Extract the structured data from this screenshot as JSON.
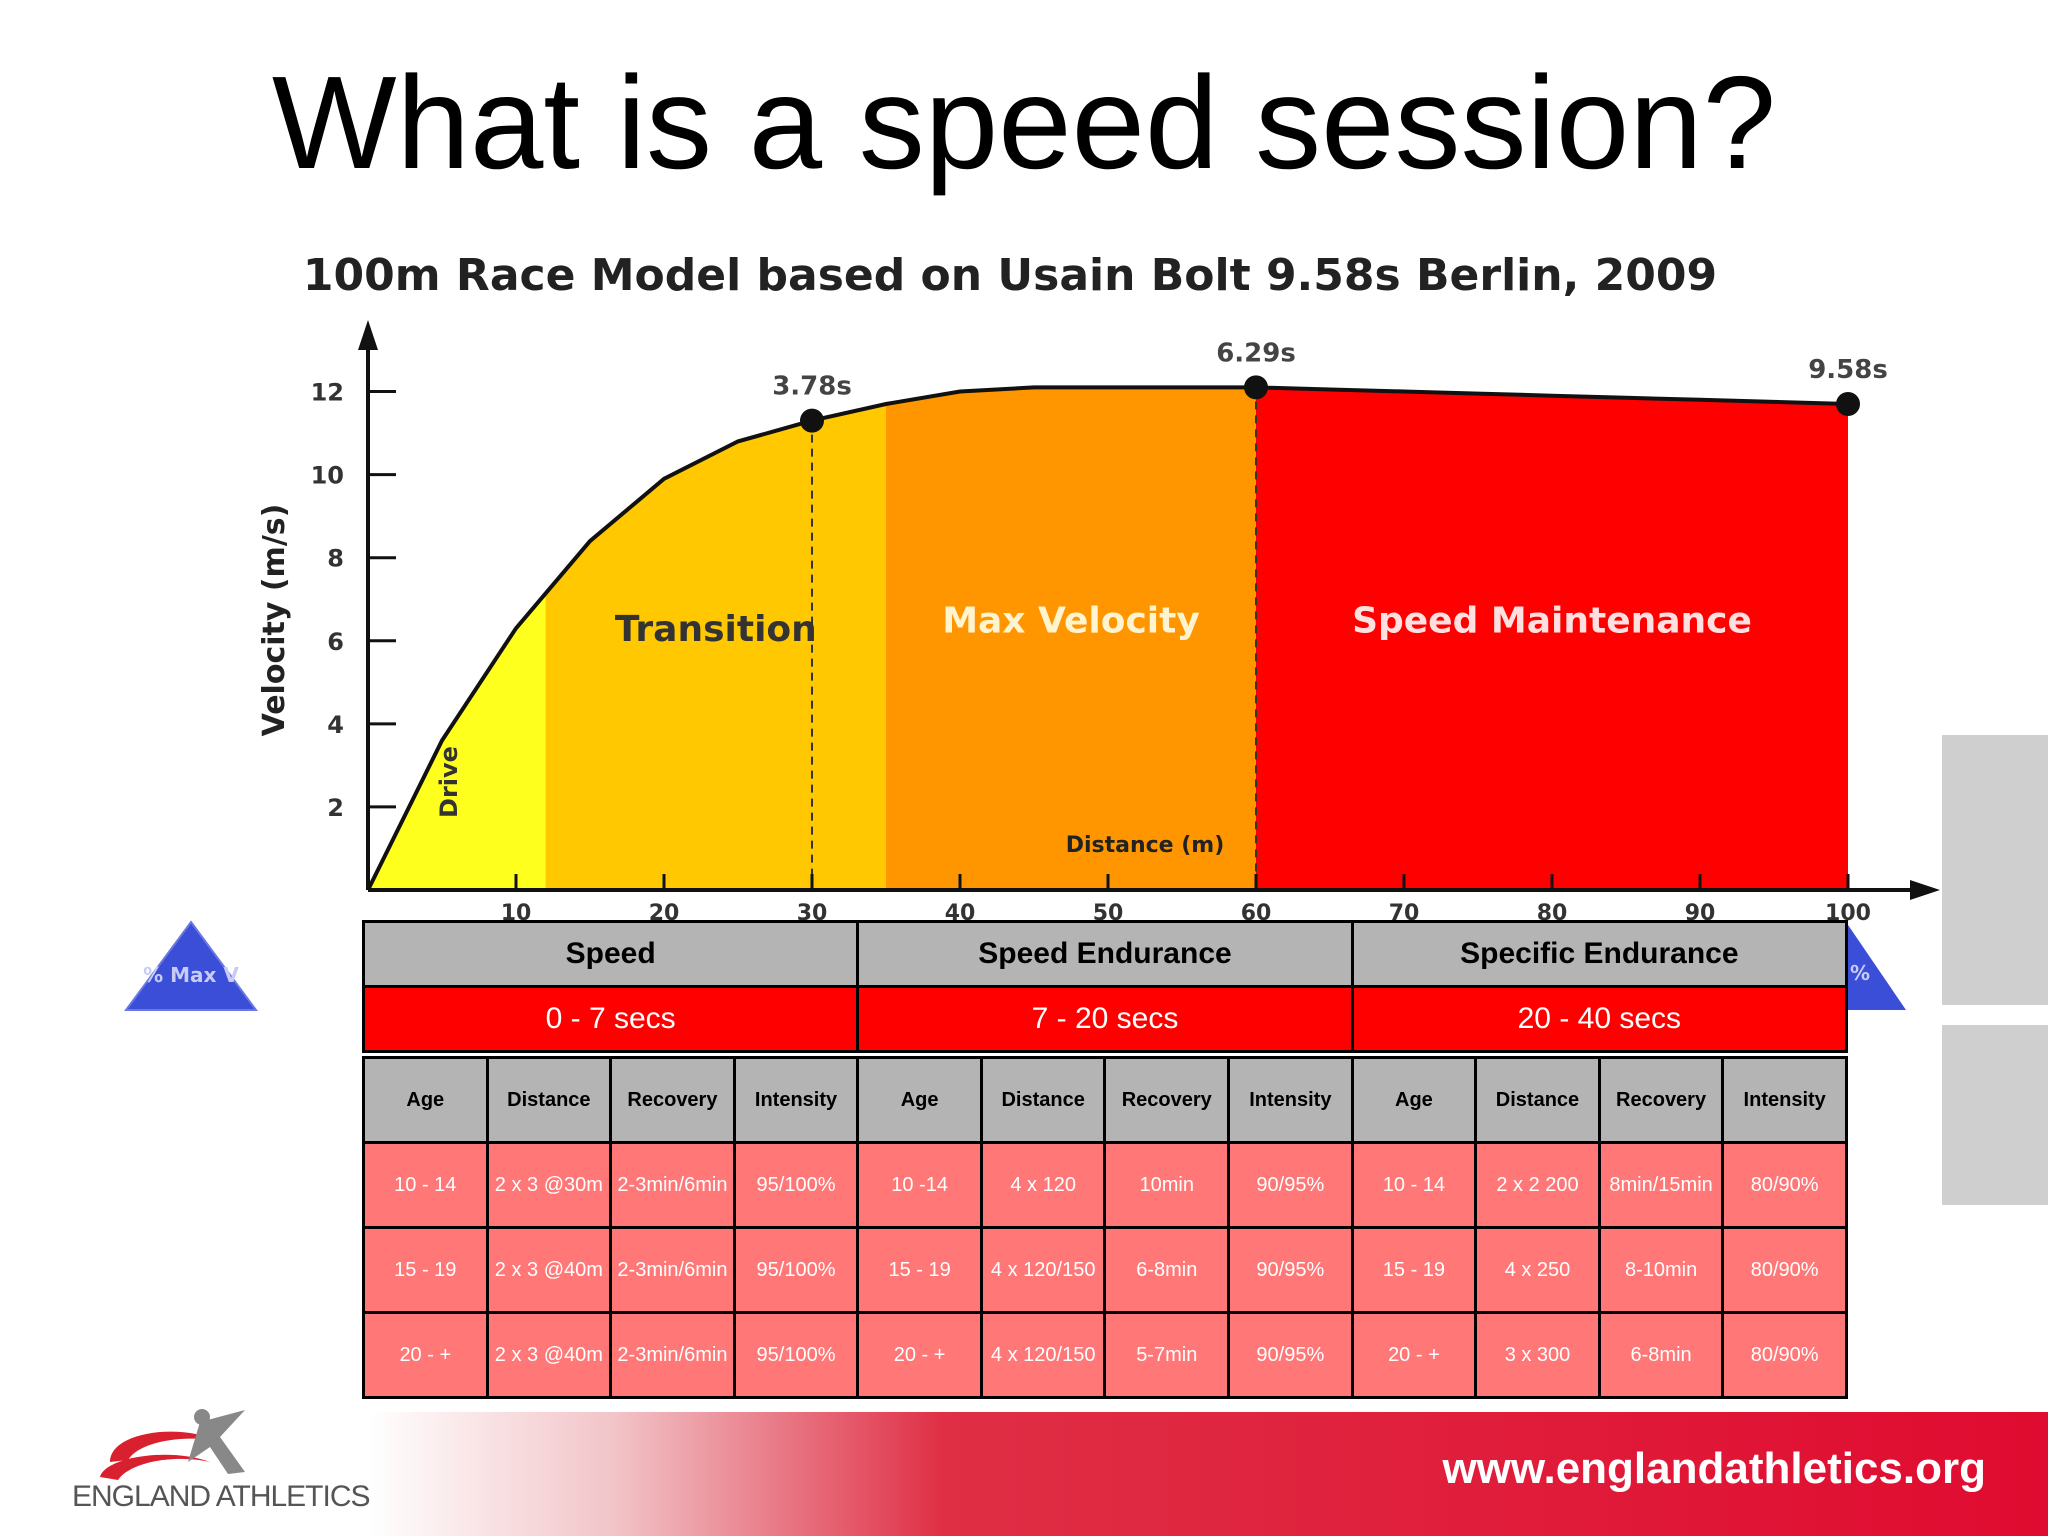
{
  "slide": {
    "title": "What is a speed session?",
    "website": "www.englandathletics.org",
    "logo_text": "ENGLAND ATHLETICS",
    "max_v_label": "% Max V",
    "right_badge_label": "%"
  },
  "chart_data": {
    "type": "area",
    "title": "100m Race Model based on Usain Bolt 9.58s Berlin, 2009",
    "xlabel": "Distance (m)",
    "ylabel": "Velocity (m/s)",
    "xlim": [
      0,
      100
    ],
    "ylim": [
      0,
      13
    ],
    "xticks": [
      10,
      20,
      30,
      40,
      50,
      60,
      70,
      80,
      90,
      100
    ],
    "yticks": [
      2,
      4,
      6,
      8,
      10,
      12
    ],
    "x": [
      0,
      5,
      10,
      15,
      20,
      25,
      30,
      35,
      40,
      45,
      50,
      55,
      60,
      65,
      70,
      75,
      80,
      85,
      90,
      95,
      100
    ],
    "y": [
      0,
      3.6,
      6.3,
      8.4,
      9.9,
      10.8,
      11.3,
      11.7,
      12.0,
      12.1,
      12.1,
      12.1,
      12.1,
      12.05,
      12.0,
      11.95,
      11.9,
      11.85,
      11.8,
      11.75,
      11.7
    ],
    "phases": [
      {
        "name": "Drive",
        "from": 0,
        "to": 12,
        "color": "#ffff1e"
      },
      {
        "name": "Transition",
        "from": 12,
        "to": 35,
        "color": "#ffc800"
      },
      {
        "name": "Max Velocity",
        "from": 35,
        "to": 60,
        "color": "#ff9600"
      },
      {
        "name": "Speed Maintenance",
        "from": 60,
        "to": 100,
        "color": "#ff0000"
      }
    ],
    "annotations": [
      {
        "x": 30,
        "y": 11.3,
        "label": "3.78s"
      },
      {
        "x": 60,
        "y": 12.1,
        "label": "6.29s"
      },
      {
        "x": 100,
        "y": 11.7,
        "label": "9.58s"
      }
    ]
  },
  "table": {
    "categories": [
      {
        "name": "Speed",
        "duration": "0 - 7 secs"
      },
      {
        "name": "Speed Endurance",
        "duration": "7 - 20 secs"
      },
      {
        "name": "Specific Endurance",
        "duration": "20 - 40 secs"
      }
    ],
    "column_headers": [
      "Age",
      "Distance",
      "Recovery",
      "Intensity",
      "Age",
      "Distance",
      "Recovery",
      "Intensity",
      "Age",
      "Distance",
      "Recovery",
      "Intensity"
    ],
    "rows": [
      [
        "10 - 14",
        "2 x 3 @30m",
        "2-3min/6min",
        "95/100%",
        "10 -14",
        "4 x 120",
        "10min",
        "90/95%",
        "10 - 14",
        "2 x 2 200",
        "8min/15min",
        "80/90%"
      ],
      [
        "15 - 19",
        "2 x 3 @40m",
        "2-3min/6min",
        "95/100%",
        "15 - 19",
        "4 x 120/150",
        "6-8min",
        "90/95%",
        "15 - 19",
        "4 x 250",
        "8-10min",
        "80/90%"
      ],
      [
        "20 - +",
        "2 x 3 @40m",
        "2-3min/6min",
        "95/100%",
        "20 - +",
        "4 x 120/150",
        "5-7min",
        "90/95%",
        "20 - +",
        "3 x 300",
        "6-8min",
        "80/90%"
      ]
    ]
  }
}
